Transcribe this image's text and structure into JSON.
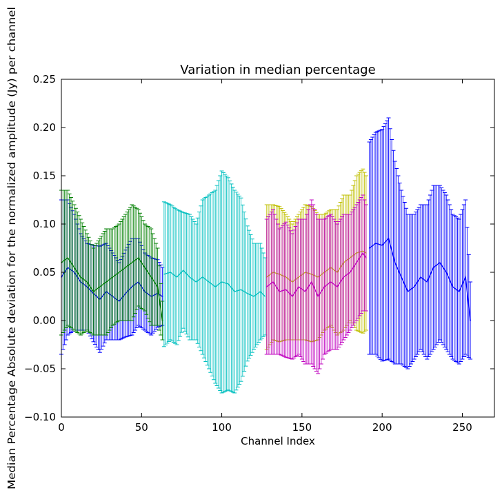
{
  "chart_data": {
    "type": "line",
    "title": "Variation in median percentage",
    "xlabel": "Channel Index",
    "ylabel": "Median Percentage Absolute deviation for the normalized amplitude (Jy) per channel",
    "xlim": [
      0,
      270
    ],
    "ylim": [
      -0.1,
      0.25
    ],
    "xticks": [
      0,
      50,
      100,
      150,
      200,
      250
    ],
    "yticks": [
      -0.1,
      -0.05,
      0.0,
      0.05,
      0.1,
      0.15,
      0.2,
      0.25
    ],
    "ytick_labels": [
      "−0.10",
      "−0.05",
      "0.00",
      "0.05",
      "0.10",
      "0.15",
      "0.20",
      "0.25"
    ],
    "grid": false,
    "error_bars": true,
    "series": [
      {
        "color": "#0000ff",
        "x": [
          0,
          4,
          8,
          12,
          16,
          20,
          24,
          28,
          32,
          36,
          40,
          44,
          48,
          52,
          56,
          60,
          63
        ],
        "y": [
          0.045,
          0.055,
          0.05,
          0.04,
          0.035,
          0.028,
          0.022,
          0.03,
          0.025,
          0.02,
          0.028,
          0.035,
          0.04,
          0.03,
          0.025,
          0.028,
          0.025
        ],
        "err": [
          0.08,
          0.07,
          0.06,
          0.05,
          0.045,
          0.05,
          0.055,
          0.05,
          0.045,
          0.04,
          0.045,
          0.05,
          0.045,
          0.04,
          0.04,
          0.035,
          0.03
        ]
      },
      {
        "color": "#007f00",
        "x": [
          0,
          4,
          8,
          12,
          16,
          20,
          24,
          28,
          32,
          36,
          40,
          44,
          48,
          52,
          56,
          60,
          63
        ],
        "y": [
          0.06,
          0.065,
          0.055,
          0.045,
          0.04,
          0.03,
          0.035,
          0.04,
          0.045,
          0.05,
          0.055,
          0.06,
          0.065,
          0.055,
          0.045,
          0.035,
          0.0
        ],
        "err": [
          0.075,
          0.07,
          0.065,
          0.06,
          0.05,
          0.045,
          0.05,
          0.055,
          0.05,
          0.05,
          0.055,
          0.06,
          0.05,
          0.045,
          0.05,
          0.04,
          0.02
        ]
      },
      {
        "color": "#00bfbf",
        "x": [
          64,
          68,
          72,
          76,
          80,
          84,
          88,
          92,
          96,
          100,
          104,
          108,
          112,
          116,
          120,
          124,
          127
        ],
        "y": [
          0.048,
          0.05,
          0.045,
          0.052,
          0.045,
          0.04,
          0.045,
          0.04,
          0.035,
          0.04,
          0.038,
          0.03,
          0.032,
          0.028,
          0.025,
          0.03,
          0.025
        ],
        "err": [
          0.075,
          0.07,
          0.07,
          0.06,
          0.065,
          0.06,
          0.08,
          0.09,
          0.1,
          0.115,
          0.11,
          0.105,
          0.095,
          0.07,
          0.055,
          0.05,
          0.04
        ]
      },
      {
        "color": "#bfbf00",
        "x": [
          128,
          132,
          136,
          140,
          144,
          148,
          152,
          156,
          160,
          164,
          168,
          172,
          176,
          180,
          184,
          188,
          190
        ],
        "y": [
          0.045,
          0.05,
          0.048,
          0.045,
          0.04,
          0.045,
          0.05,
          0.048,
          0.045,
          0.05,
          0.055,
          0.05,
          0.06,
          0.065,
          0.07,
          0.072,
          0.07
        ],
        "err": [
          0.075,
          0.07,
          0.07,
          0.065,
          0.06,
          0.065,
          0.07,
          0.07,
          0.065,
          0.06,
          0.06,
          0.065,
          0.07,
          0.065,
          0.08,
          0.085,
          0.08
        ]
      },
      {
        "color": "#bf00bf",
        "x": [
          128,
          132,
          136,
          140,
          144,
          148,
          152,
          156,
          160,
          164,
          168,
          172,
          176,
          180,
          184,
          188,
          190
        ],
        "y": [
          0.035,
          0.04,
          0.03,
          0.032,
          0.025,
          0.035,
          0.03,
          0.04,
          0.025,
          0.035,
          0.04,
          0.035,
          0.045,
          0.05,
          0.06,
          0.07,
          0.065
        ],
        "err": [
          0.07,
          0.075,
          0.065,
          0.07,
          0.065,
          0.07,
          0.075,
          0.085,
          0.08,
          0.07,
          0.07,
          0.065,
          0.065,
          0.06,
          0.06,
          0.06,
          0.055
        ]
      },
      {
        "color": "#0000ff",
        "x": [
          192,
          196,
          200,
          204,
          208,
          212,
          216,
          220,
          224,
          228,
          232,
          236,
          240,
          244,
          248,
          252,
          255
        ],
        "y": [
          0.075,
          0.08,
          0.078,
          0.085,
          0.06,
          0.045,
          0.03,
          0.035,
          0.045,
          0.04,
          0.055,
          0.06,
          0.05,
          0.035,
          0.03,
          0.045,
          0.0
        ],
        "err": [
          0.11,
          0.115,
          0.12,
          0.125,
          0.105,
          0.09,
          0.08,
          0.075,
          0.075,
          0.08,
          0.085,
          0.08,
          0.08,
          0.075,
          0.075,
          0.08,
          0.04
        ]
      }
    ]
  }
}
